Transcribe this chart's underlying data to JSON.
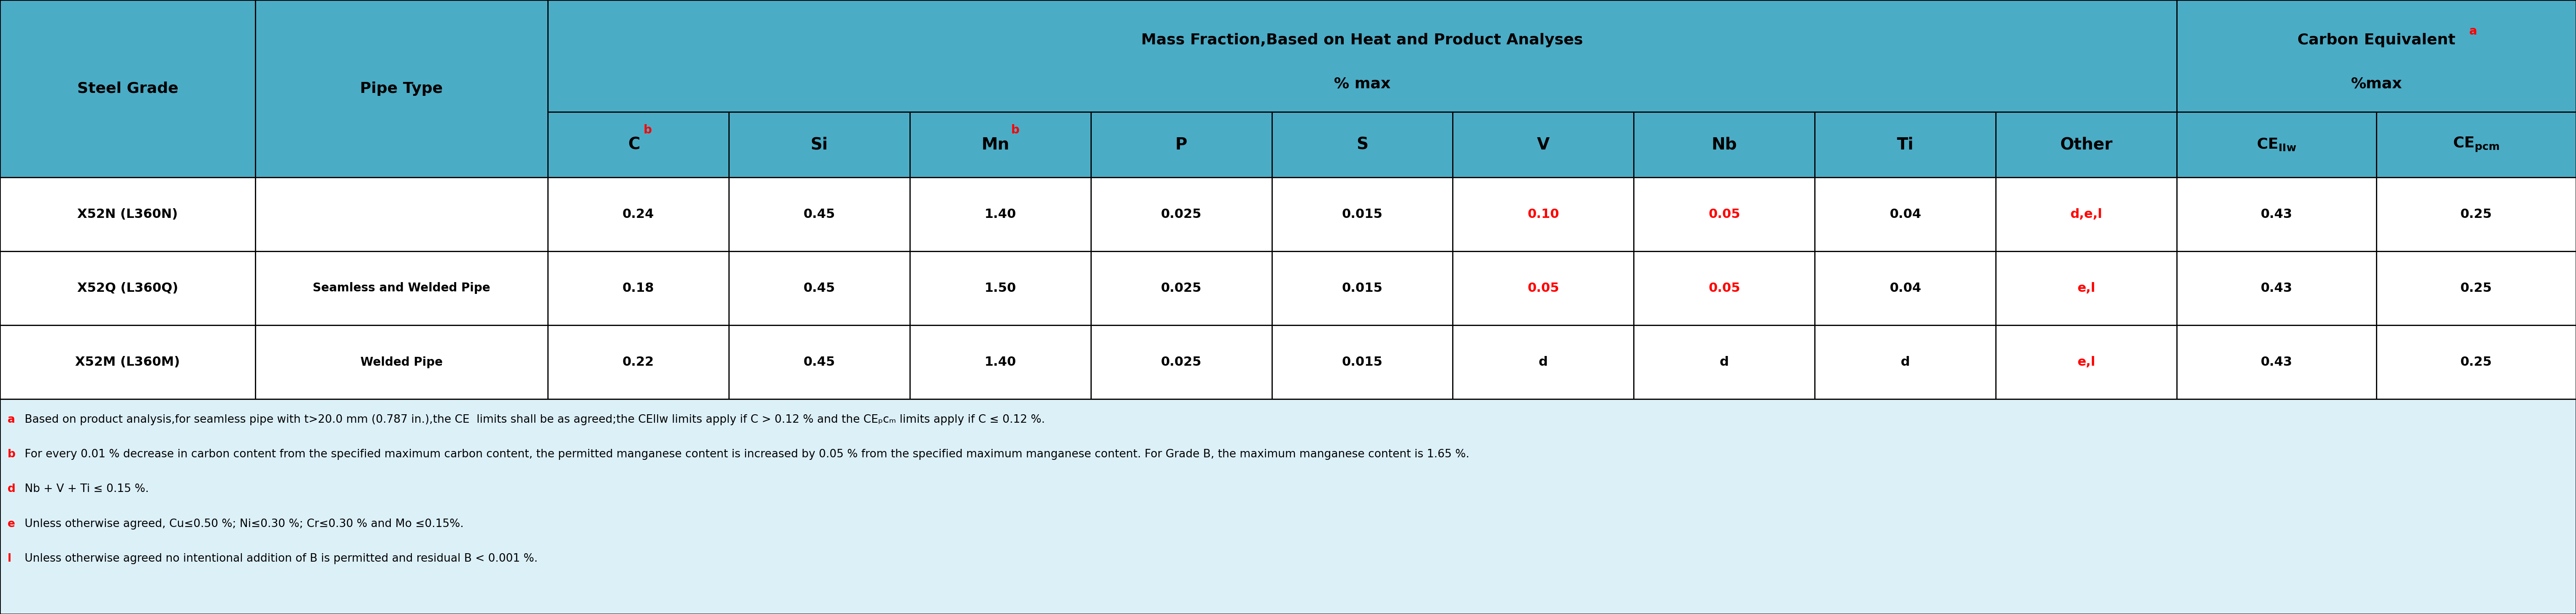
{
  "header_bg": "#4BACC6",
  "body_bg": "#FFFFFF",
  "footnote_bg": "#DCF0F8",
  "border_color": "#000000",
  "red_color": "#FF0000",
  "watermark_color": "#A8D8EA",
  "figsize": [
    61.04,
    14.54
  ],
  "dpi": 100,
  "col1_header": "Steel Grade",
  "col2_header": "Pipe Type",
  "mass_fraction_line1": "Mass Fraction,Based on Heat and Product Analyses",
  "mass_fraction_line2": "% max",
  "carbon_equiv_line1": "Carbon Equivalent",
  "carbon_equiv_line2": "%max",
  "carbon_equiv_sup": "a",
  "sub_headers": [
    "C",
    "Si",
    "Mn",
    "P",
    "S",
    "V",
    "Nb",
    "Ti",
    "Other",
    "CE_IIw",
    "CE_pcm"
  ],
  "rows": [
    {
      "grade": "X52N (L360N)",
      "pipe_type": "",
      "C": "0.24",
      "Si": "0.45",
      "Mn": "1.40",
      "P": "0.025",
      "S": "0.015",
      "V": "0.10",
      "Nb": "0.05",
      "Ti": "0.04",
      "Other": "d,e,l",
      "CE_IIw": "0.43",
      "CE_pcm": "0.25",
      "V_red": true,
      "Nb_red": true,
      "Other_red": true
    },
    {
      "grade": "X52Q (L360Q)",
      "pipe_type": "Seamless and Welded Pipe",
      "C": "0.18",
      "Si": "0.45",
      "Mn": "1.50",
      "P": "0.025",
      "S": "0.015",
      "V": "0.05",
      "Nb": "0.05",
      "Ti": "0.04",
      "Other": "e,l",
      "CE_IIw": "0.43",
      "CE_pcm": "0.25",
      "V_red": true,
      "Nb_red": true,
      "Other_red": true
    },
    {
      "grade": "X52M (L360M)",
      "pipe_type": "Welded Pipe",
      "C": "0.22",
      "Si": "0.45",
      "Mn": "1.40",
      "P": "0.025",
      "S": "0.015",
      "V": "d",
      "Nb": "d",
      "Ti": "d",
      "Other": "e,l",
      "CE_IIw": "0.43",
      "CE_pcm": "0.25",
      "V_red": false,
      "Nb_red": false,
      "Other_red": true
    }
  ],
  "footnotes": [
    {
      "marker": "a",
      "text": " Based on product analysis,for seamless pipe with t>20.0 mm (0.787 in.),the CE  limits shall be as agreed;the CEllw limits apply if C > 0.12 % and the CEₚᴄₘ limits apply if C ≤ 0.12 %."
    },
    {
      "marker": "b",
      "text": " For every 0.01 % decrease in carbon content from the specified maximum carbon content, the permitted manganese content is increased by 0.05 % from the specified maximum manganese content. For Grade B, the maximum manganese content is 1.65 %."
    },
    {
      "marker": "d",
      "text": " Nb + V + Ti ≤ 0.15 %."
    },
    {
      "marker": "e",
      "text": " Unless otherwise agreed, Cu≤0.50 %; Ni≤0.30 %; Cr≤0.30 % and Mo ≤0.15%."
    },
    {
      "marker": "l",
      "text": " Unless otherwise agreed no intentional addition of B is permitted and residual B < 0.001 %."
    }
  ]
}
